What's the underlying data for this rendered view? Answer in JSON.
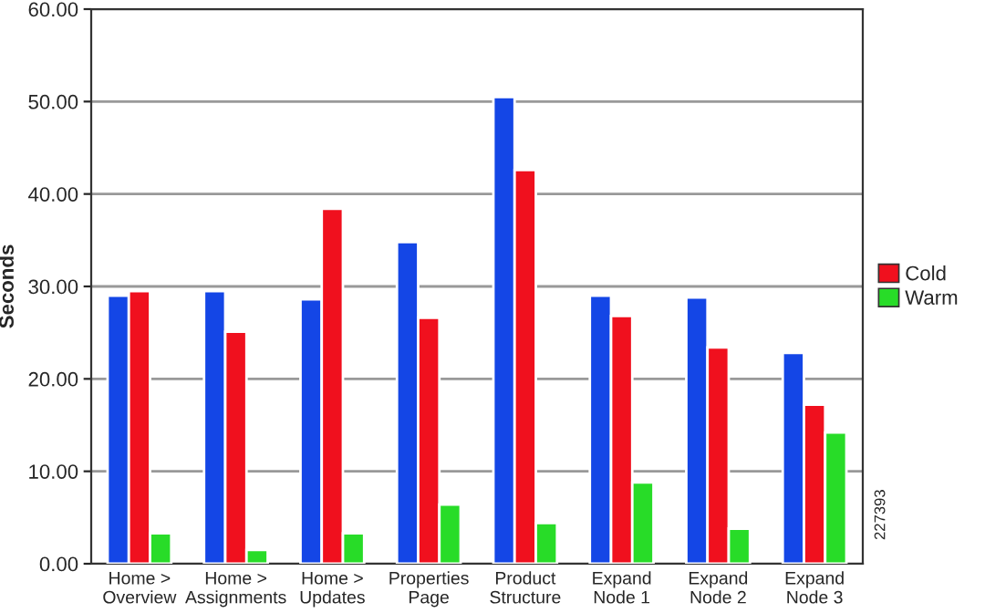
{
  "chart_data": {
    "type": "bar",
    "ylabel": "Seconds",
    "categories": [
      "Home >\nOverview",
      "Home >\nAssignments",
      "Home >\nUpdates",
      "Properties\nPage",
      "Product\nStructure",
      "Expand\nNode 1",
      "Expand\nNode 2",
      "Expand\nNode 3"
    ],
    "series": [
      {
        "color": "#1446e6",
        "values": [
          29.0,
          29.5,
          28.6,
          34.8,
          50.5,
          29.0,
          28.8,
          22.8
        ]
      },
      {
        "name": "Cold",
        "color": "#f0101e",
        "values": [
          29.5,
          25.1,
          38.4,
          26.6,
          42.6,
          26.8,
          23.4,
          17.2
        ]
      },
      {
        "name": "Warm",
        "color": "#28dc28",
        "values": [
          3.3,
          1.5,
          3.3,
          6.4,
          4.4,
          8.8,
          3.8,
          14.2
        ]
      }
    ],
    "ylim": [
      0,
      60
    ],
    "yticks": [
      {
        "value": 0,
        "label": "0.00"
      },
      {
        "value": 10,
        "label": "10.00"
      },
      {
        "value": 20,
        "label": "20.00"
      },
      {
        "value": 30,
        "label": "30.00"
      },
      {
        "value": 40,
        "label": "40.00"
      },
      {
        "value": 50,
        "label": "50.00"
      },
      {
        "value": 60,
        "label": "60.00"
      }
    ],
    "grid": "y",
    "legend": "right",
    "annotations": [
      "227393"
    ]
  }
}
